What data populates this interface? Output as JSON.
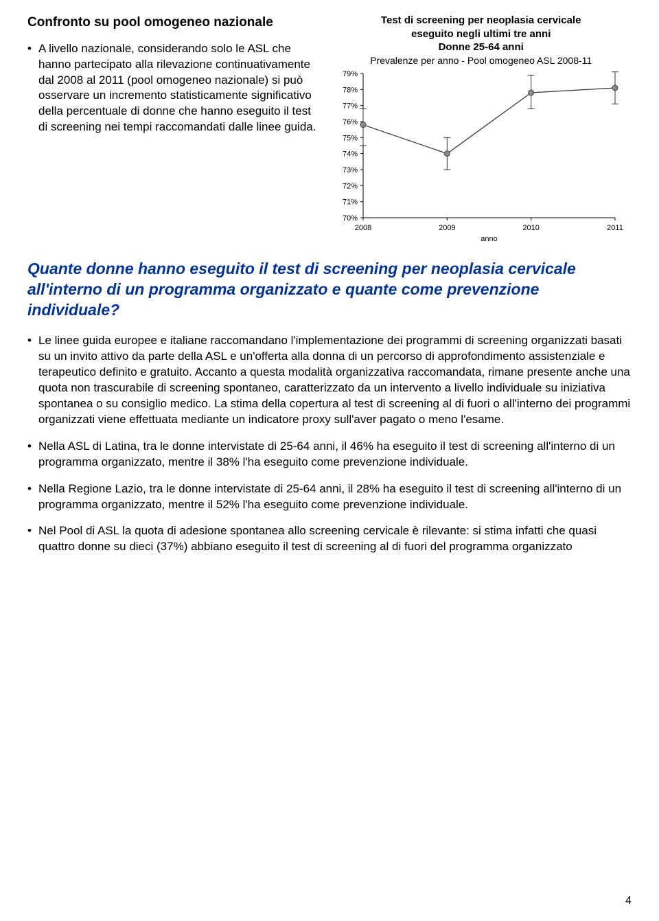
{
  "top": {
    "heading": "Confronto su pool omogeneo nazionale",
    "bullet": "A livello nazionale, considerando solo le ASL che hanno partecipato alla rilevazione continuativamente dal 2008 al 2011 (pool omogeneo nazionale) si può osservare un incremento statisticamente significativo della percentuale di donne che hanno eseguito il test di screening nei tempi raccomandati dalle linee guida."
  },
  "chart": {
    "type": "line",
    "title1": "Test di screening per neoplasia cervicale",
    "title2": "eseguito negli ultimi tre anni",
    "title3": "Donne 25-64 anni",
    "subtitle": "Prevalenze per anno - Pool omogeneo ASL 2008-11",
    "x_label": "anno",
    "x_ticks": [
      "2008",
      "2009",
      "2010",
      "2011"
    ],
    "y_ticks": [
      "70%",
      "71%",
      "72%",
      "73%",
      "74%",
      "75%",
      "76%",
      "77%",
      "78%",
      "79%"
    ],
    "ylim": [
      70,
      79
    ],
    "xlim": [
      2008,
      2011
    ],
    "points": [
      {
        "x": 2008,
        "y": 75.8,
        "lo": 74.5,
        "hi": 76.8
      },
      {
        "x": 2009,
        "y": 74.0,
        "lo": 73.0,
        "hi": 75.0
      },
      {
        "x": 2010,
        "y": 77.8,
        "lo": 76.8,
        "hi": 78.9
      },
      {
        "x": 2011,
        "y": 78.1,
        "lo": 77.1,
        "hi": 79.1
      }
    ],
    "line_color": "#333333",
    "marker_outline": "#444444",
    "marker_fill": "#888888",
    "axis_color": "#000000",
    "background": "#ffffff",
    "marker_radius": 4,
    "line_width": 1.2,
    "title_fontsize": 15,
    "tick_fontsize": 11
  },
  "blue_heading": "Quante donne hanno eseguito il test di screening per neoplasia cervicale all'interno di un programma organizzato e quante come prevenzione individuale?",
  "bullets": {
    "b1": "Le linee guida europee e italiane raccomandano l'implementazione dei programmi di screening organizzati basati su un invito attivo da parte della ASL e un'offerta alla donna di un percorso di approfondimento assistenziale e terapeutico definito e gratuito. Accanto a questa modalità organizzativa raccomandata, rimane presente anche una quota non trascurabile di screening spontaneo, caratterizzato da un intervento a livello individuale su iniziativa spontanea o su consiglio medico. La stima della copertura al test di screening al di fuori o all'interno dei programmi organizzati viene effettuata mediante un indicatore proxy sull'aver pagato o meno l'esame.",
    "b2": "Nella ASL di Latina, tra le donne intervistate di 25-64 anni, il 46% ha eseguito il test di screening all'interno di un programma organizzato, mentre il 38% l'ha eseguito come prevenzione individuale.",
    "b3": "Nella Regione Lazio, tra le donne intervistate di 25-64 anni, il 28% ha eseguito il test di screening all'interno di un programma organizzato, mentre il 52% l'ha eseguito come prevenzione individuale.",
    "b4": "Nel Pool di ASL la quota di adesione spontanea allo screening cervicale è rilevante: si stima infatti che quasi quattro donne su dieci (37%) abbiano eseguito il test di screening al di fuori del programma organizzato"
  },
  "page_number": "4"
}
